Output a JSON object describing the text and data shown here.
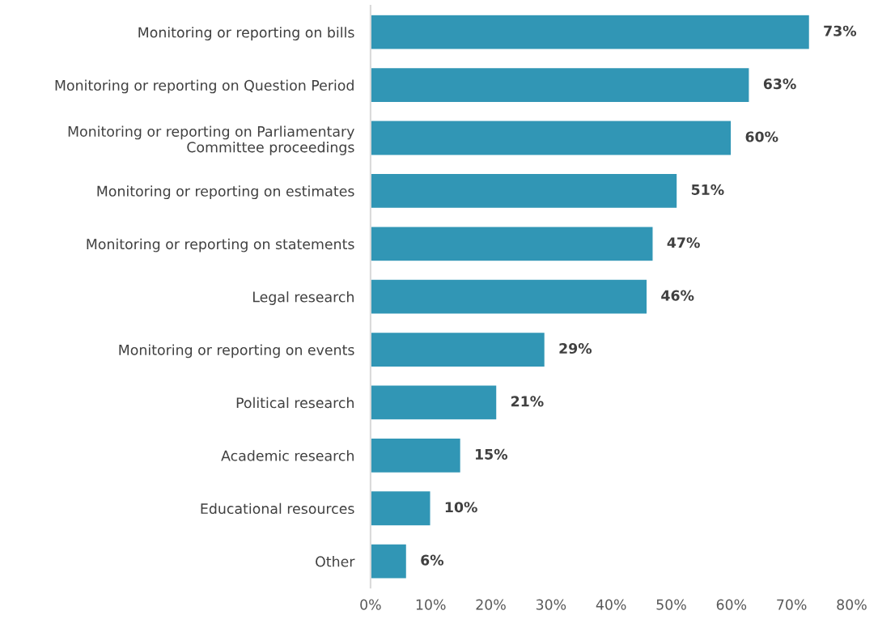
{
  "chart_data": {
    "type": "bar",
    "orientation": "horizontal",
    "categories": [
      "Monitoring or reporting on bills",
      "Monitoring or reporting on Question Period",
      "Monitoring or reporting on Parliamentary\nCommittee proceedings",
      "Monitoring or reporting on estimates",
      "Monitoring or reporting on statements",
      "Legal research",
      "Monitoring or reporting on events",
      "Political research",
      "Academic research",
      "Educational resources",
      "Other"
    ],
    "values": [
      73,
      63,
      60,
      51,
      47,
      46,
      29,
      21,
      15,
      10,
      6
    ],
    "value_labels": [
      "73%",
      "63%",
      "60%",
      "51%",
      "47%",
      "46%",
      "29%",
      "21%",
      "15%",
      "10%",
      "6%"
    ],
    "color": "#3196b5",
    "xlim": [
      0,
      80
    ],
    "xticks": [
      {
        "value": 0,
        "label": "0%"
      },
      {
        "value": 10,
        "label": "10%"
      },
      {
        "value": 20,
        "label": "20%"
      },
      {
        "value": 30,
        "label": "30%"
      },
      {
        "value": 40,
        "label": "40%"
      },
      {
        "value": 50,
        "label": "50%"
      },
      {
        "value": 60,
        "label": "60%"
      },
      {
        "value": 70,
        "label": "70%"
      },
      {
        "value": 80,
        "label": "80%"
      }
    ],
    "grid": false,
    "legend": false
  }
}
